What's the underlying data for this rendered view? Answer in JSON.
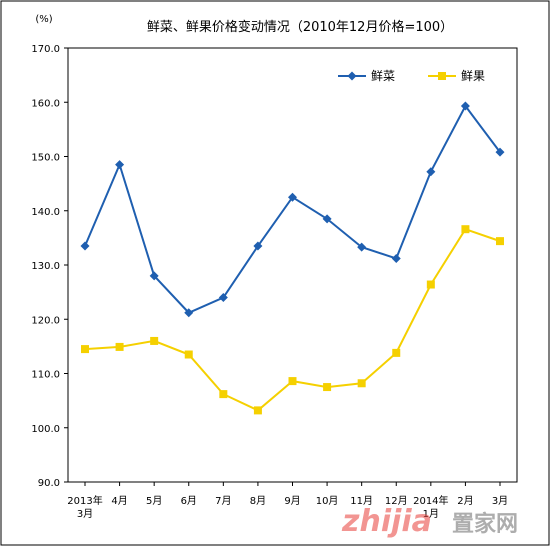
{
  "chart_data": {
    "type": "line",
    "title": "鲜菜、鲜果价格变动情况（2010年12月价格=100）",
    "y_unit": "(%)",
    "categories": [
      "2013年\n3月",
      "4月",
      "5月",
      "6月",
      "7月",
      "8月",
      "9月",
      "10月",
      "11月",
      "12月",
      "2014年\n1月",
      "2月",
      "3月"
    ],
    "ylim": [
      90,
      170
    ],
    "yticks": [
      "90.0",
      "100.0",
      "110.0",
      "120.0",
      "130.0",
      "140.0",
      "150.0",
      "160.0",
      "170.0"
    ],
    "ytick_values": [
      90,
      100,
      110,
      120,
      130,
      140,
      150,
      160,
      170
    ],
    "grid": false,
    "legend_position": "top-right",
    "series": [
      {
        "name": "鲜菜",
        "color": "#1f5fb0",
        "marker": "diamond",
        "values": [
          133.5,
          148.5,
          128.0,
          121.2,
          124.0,
          133.5,
          142.5,
          138.5,
          133.3,
          131.2,
          147.2,
          159.3,
          150.8
        ]
      },
      {
        "name": "鲜果",
        "color": "#f5d000",
        "marker": "square",
        "values": [
          114.5,
          114.9,
          116.0,
          113.5,
          106.2,
          103.2,
          108.6,
          107.5,
          108.2,
          113.8,
          126.4,
          136.6,
          134.4
        ]
      }
    ]
  },
  "watermark": "zhijia 置家网"
}
